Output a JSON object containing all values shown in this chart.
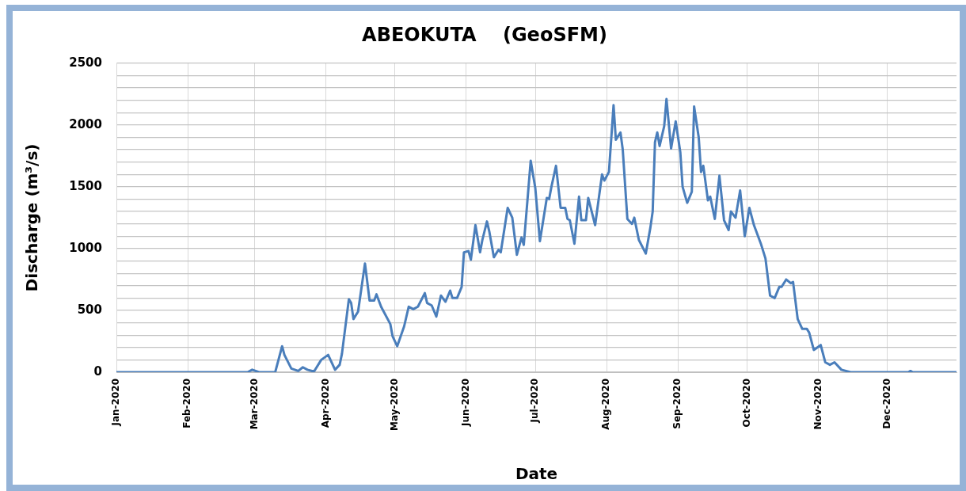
{
  "chart_data": {
    "type": "line",
    "title": "ABEOKUTA    (GeoSFM)",
    "xlabel": "Date",
    "ylabel": "Discharge (m³/s)",
    "x": [
      "2020-01-01",
      "2020-02-27",
      "2020-02-29",
      "2020-03-03",
      "2020-03-10",
      "2020-03-13",
      "2020-03-14",
      "2020-03-17",
      "2020-03-20",
      "2020-03-22",
      "2020-03-24",
      "2020-03-26",
      "2020-03-27",
      "2020-03-30",
      "2020-04-02",
      "2020-04-05",
      "2020-04-07",
      "2020-04-08",
      "2020-04-11",
      "2020-04-12",
      "2020-04-13",
      "2020-04-15",
      "2020-04-18",
      "2020-04-20",
      "2020-04-22",
      "2020-04-23",
      "2020-04-25",
      "2020-04-29",
      "2020-04-30",
      "2020-05-02",
      "2020-05-05",
      "2020-05-07",
      "2020-05-09",
      "2020-05-11",
      "2020-05-14",
      "2020-05-15",
      "2020-05-17",
      "2020-05-19",
      "2020-05-21",
      "2020-05-23",
      "2020-05-25",
      "2020-05-26",
      "2020-05-28",
      "2020-05-30",
      "2020-05-31",
      "2020-06-02",
      "2020-06-03",
      "2020-06-05",
      "2020-06-07",
      "2020-06-08",
      "2020-06-10",
      "2020-06-11",
      "2020-06-13",
      "2020-06-15",
      "2020-06-16",
      "2020-06-19",
      "2020-06-21",
      "2020-06-23",
      "2020-06-25",
      "2020-06-26",
      "2020-06-29",
      "2020-07-01",
      "2020-07-03",
      "2020-07-06",
      "2020-07-07",
      "2020-07-08",
      "2020-07-10",
      "2020-07-12",
      "2020-07-14",
      "2020-07-15",
      "2020-07-16",
      "2020-07-18",
      "2020-07-20",
      "2020-07-21",
      "2020-07-23",
      "2020-07-24",
      "2020-07-27",
      "2020-07-30",
      "2020-07-31",
      "2020-08-02",
      "2020-08-04",
      "2020-08-05",
      "2020-08-07",
      "2020-08-08",
      "2020-08-10",
      "2020-08-12",
      "2020-08-13",
      "2020-08-15",
      "2020-08-18",
      "2020-08-20",
      "2020-08-21",
      "2020-08-22",
      "2020-08-23",
      "2020-08-24",
      "2020-08-26",
      "2020-08-27",
      "2020-08-29",
      "2020-08-31",
      "2020-09-02",
      "2020-09-03",
      "2020-09-05",
      "2020-09-07",
      "2020-09-08",
      "2020-09-10",
      "2020-09-11",
      "2020-09-12",
      "2020-09-14",
      "2020-09-15",
      "2020-09-17",
      "2020-09-19",
      "2020-09-21",
      "2020-09-23",
      "2020-09-24",
      "2020-09-26",
      "2020-09-28",
      "2020-09-30",
      "2020-10-02",
      "2020-10-04",
      "2020-10-07",
      "2020-10-09",
      "2020-10-11",
      "2020-10-13",
      "2020-10-15",
      "2020-10-16",
      "2020-10-18",
      "2020-10-20",
      "2020-10-21",
      "2020-10-23",
      "2020-10-25",
      "2020-10-27",
      "2020-10-28",
      "2020-10-30",
      "2020-11-02",
      "2020-11-04",
      "2020-11-06",
      "2020-11-08",
      "2020-11-11",
      "2020-11-15",
      "2020-12-10",
      "2020-12-11",
      "2020-12-12",
      "2020-12-31"
    ],
    "values": [
      0,
      0,
      20,
      0,
      0,
      210,
      140,
      30,
      10,
      40,
      20,
      10,
      10,
      100,
      140,
      20,
      60,
      150,
      590,
      560,
      430,
      490,
      880,
      580,
      580,
      630,
      530,
      390,
      290,
      210,
      370,
      530,
      510,
      530,
      640,
      560,
      540,
      450,
      620,
      570,
      660,
      600,
      600,
      690,
      970,
      980,
      910,
      1190,
      970,
      1070,
      1220,
      1140,
      930,
      990,
      970,
      1330,
      1250,
      950,
      1090,
      1030,
      1710,
      1490,
      1060,
      1410,
      1400,
      1500,
      1670,
      1330,
      1330,
      1240,
      1230,
      1040,
      1420,
      1230,
      1230,
      1410,
      1190,
      1600,
      1550,
      1620,
      2160,
      1880,
      1940,
      1800,
      1240,
      1200,
      1250,
      1070,
      960,
      1170,
      1300,
      1860,
      1940,
      1830,
      1990,
      2210,
      1810,
      2030,
      1780,
      1500,
      1370,
      1460,
      2150,
      1900,
      1620,
      1670,
      1390,
      1420,
      1240,
      1590,
      1230,
      1150,
      1300,
      1250,
      1470,
      1100,
      1330,
      1190,
      1040,
      920,
      620,
      600,
      690,
      690,
      750,
      720,
      730,
      430,
      350,
      350,
      320,
      180,
      220,
      80,
      60,
      80,
      20,
      0,
      0,
      10,
      0,
      0
    ],
    "color": "#4a7ebb",
    "xlim": [
      "2020-01-01",
      "2020-12-31"
    ],
    "xticks": [
      {
        "value": "2020-01-01",
        "label": "Jan-2020"
      },
      {
        "value": "2020-02-01",
        "label": "Feb-2020"
      },
      {
        "value": "2020-03-01",
        "label": "Mar-2020"
      },
      {
        "value": "2020-04-01",
        "label": "Apr-2020"
      },
      {
        "value": "2020-05-01",
        "label": "May-2020"
      },
      {
        "value": "2020-06-01",
        "label": "Jun-2020"
      },
      {
        "value": "2020-07-01",
        "label": "Jul-2020"
      },
      {
        "value": "2020-08-01",
        "label": "Aug-2020"
      },
      {
        "value": "2020-09-01",
        "label": "Sep-2020"
      },
      {
        "value": "2020-10-01",
        "label": "Oct-2020"
      },
      {
        "value": "2020-11-01",
        "label": "Nov-2020"
      },
      {
        "value": "2020-12-01",
        "label": "Dec-2020"
      }
    ],
    "ylim": [
      0,
      2500
    ],
    "yticks": [
      0,
      {
        "value": 100,
        "label": null
      },
      {
        "value": 200,
        "label": null
      },
      {
        "value": 300,
        "label": null
      },
      {
        "value": 400,
        "label": null
      },
      500,
      {
        "value": 600,
        "label": null
      },
      {
        "value": 700,
        "label": null
      },
      {
        "value": 800,
        "label": null
      },
      {
        "value": 900,
        "label": null
      },
      1000,
      {
        "value": 1100,
        "label": null
      },
      {
        "value": 1200,
        "label": null
      },
      {
        "value": 1300,
        "label": null
      },
      {
        "value": 1400,
        "label": null
      },
      1500,
      {
        "value": 1600,
        "label": null
      },
      {
        "value": 1700,
        "label": null
      },
      {
        "value": 1800,
        "label": null
      },
      {
        "value": 1900,
        "label": null
      },
      2000,
      {
        "value": 2100,
        "label": null
      },
      {
        "value": 2200,
        "label": null
      },
      {
        "value": 2300,
        "label": null
      },
      {
        "value": 2400,
        "label": null
      },
      2500
    ],
    "grid": true,
    "marker": "none",
    "line_style": "solid"
  }
}
